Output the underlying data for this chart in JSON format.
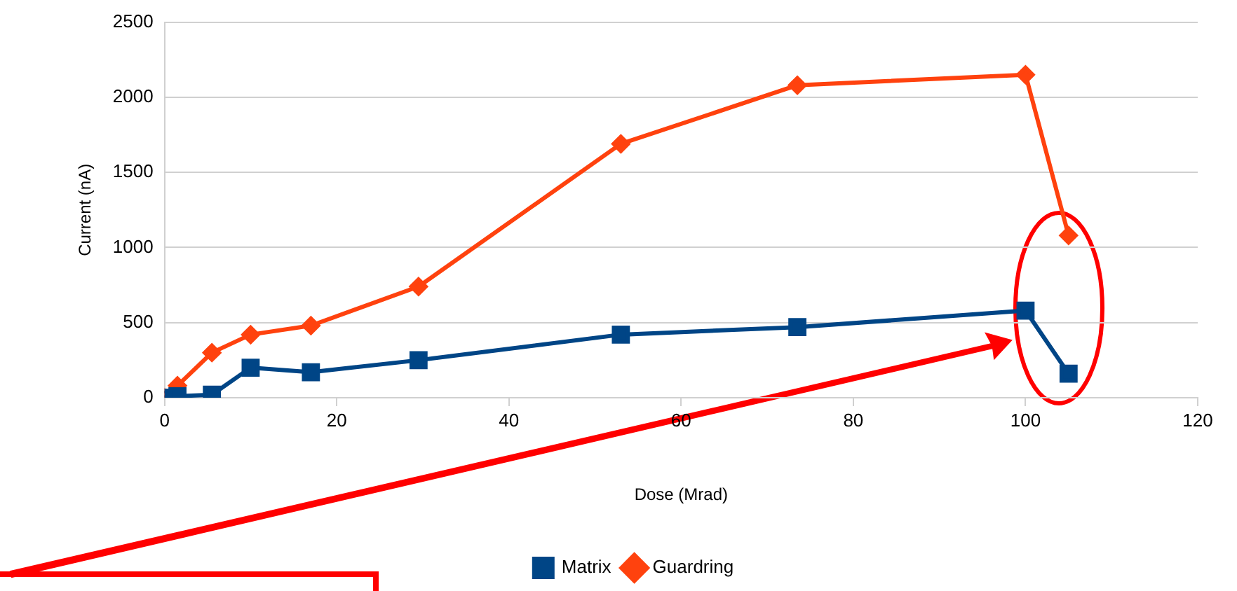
{
  "chart_data": {
    "type": "line",
    "xlabel": "Dose (Mrad)",
    "ylabel": "Current (nA)",
    "xlim": [
      0,
      120
    ],
    "xticks": [
      0,
      20,
      40,
      60,
      80,
      100,
      120
    ],
    "ylim": [
      0,
      2500
    ],
    "yticks": [
      0,
      500,
      {
        "value": 1000,
        "label": "1000"
      },
      {
        "value": 1500,
        "label": "1500"
      },
      {
        "value": 2000,
        "label": "2000"
      },
      {
        "value": 2500,
        "label": "2500"
      }
    ],
    "grid": "y",
    "legend": "bottom",
    "series": [
      {
        "name": "Matrix",
        "color": "#004586",
        "marker": "square",
        "x": [
          0,
          1.5,
          5.5,
          10,
          17,
          29.5,
          53,
          73.5,
          100,
          105
        ],
        "values": [
          0,
          10,
          20,
          200,
          170,
          250,
          420,
          470,
          580,
          160
        ]
      },
      {
        "name": "Guardring",
        "color": "#ff420e",
        "marker": "diamond",
        "x": [
          0,
          1.5,
          5.5,
          10,
          17,
          29.5,
          53,
          73.5,
          100,
          105
        ],
        "values": [
          0,
          80,
          300,
          420,
          480,
          740,
          1690,
          2080,
          2150,
          1080
        ]
      }
    ]
  }
}
